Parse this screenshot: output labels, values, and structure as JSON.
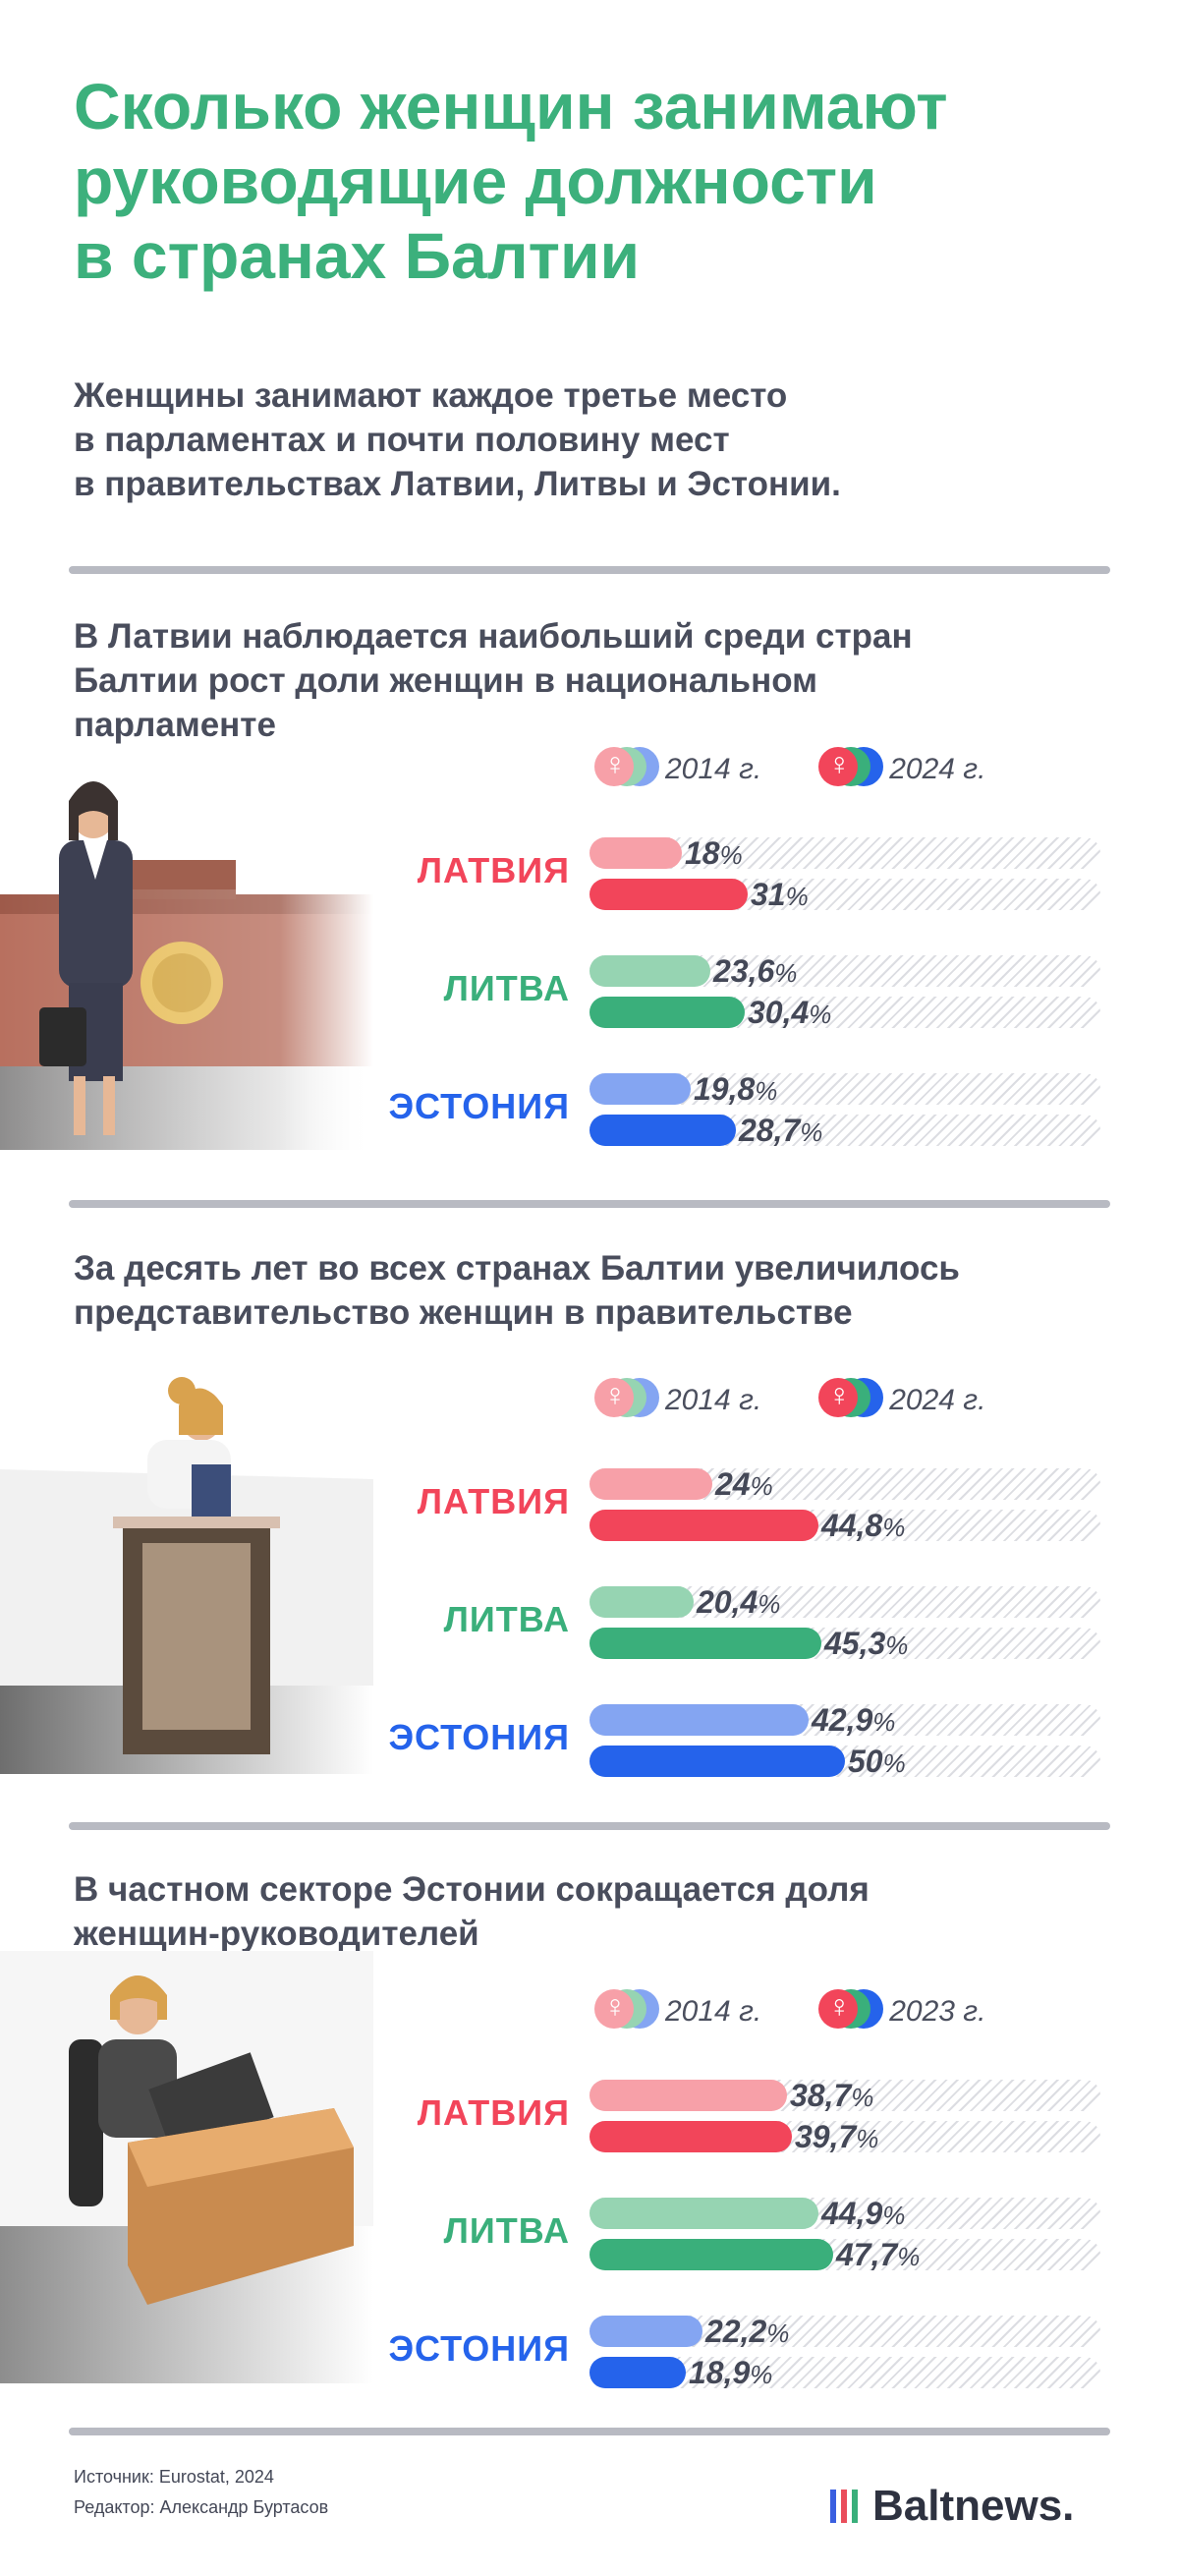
{
  "title": "Сколько женщин занимают\nруководящие должности\nв странах Балтии",
  "subtitle": "Женщины занимают каждое третье место\nв парламентах и почти половину мест\nв правительствах Латвии, Литвы и Эстонии.",
  "colors": {
    "title": "#3cb07c",
    "latvia": "#f2455a",
    "latvia_light": "#f7a0a8",
    "lithuania": "#3aaf7b",
    "lithuania_light": "#96d4b2",
    "estonia": "#2563eb",
    "estonia_light": "#84a5f2"
  },
  "chart_data": [
    {
      "type": "bar",
      "title": "В Латвии наблюдается наибольший среди стран\nБалтии рост доли женщин в национальном\nпарламенте",
      "legend": [
        "2014 г.",
        "2024 г."
      ],
      "categories": [
        "ЛАТВИЯ",
        "ЛИТВА",
        "ЭСТОНИЯ"
      ],
      "series": [
        {
          "name": "2014 г.",
          "values": [
            18,
            23.6,
            19.8
          ],
          "labels": [
            "18",
            "23,6",
            "19,8"
          ]
        },
        {
          "name": "2024 г.",
          "values": [
            31,
            30.4,
            28.7
          ],
          "labels": [
            "31",
            "30,4",
            "28,7"
          ]
        }
      ],
      "unit": "%",
      "ylim": [
        0,
        100
      ]
    },
    {
      "type": "bar",
      "title": "За десять лет во всех странах Балтии увеличилось\nпредставительство женщин в правительстве",
      "legend": [
        "2014 г.",
        "2024 г."
      ],
      "categories": [
        "ЛАТВИЯ",
        "ЛИТВА",
        "ЭСТОНИЯ"
      ],
      "series": [
        {
          "name": "2014 г.",
          "values": [
            24,
            20.4,
            42.9
          ],
          "labels": [
            "24",
            "20,4",
            "42,9"
          ]
        },
        {
          "name": "2024 г.",
          "values": [
            44.8,
            45.3,
            50
          ],
          "labels": [
            "44,8",
            "45,3",
            "50"
          ]
        }
      ],
      "unit": "%",
      "ylim": [
        0,
        100
      ]
    },
    {
      "type": "bar",
      "title": "В частном секторе Эстонии сокращается доля\nженщин-руководителей",
      "legend": [
        "2014 г.",
        "2023 г."
      ],
      "categories": [
        "ЛАТВИЯ",
        "ЛИТВА",
        "ЭСТОНИЯ"
      ],
      "series": [
        {
          "name": "2014 г.",
          "values": [
            38.7,
            44.9,
            22.2
          ],
          "labels": [
            "38,7",
            "44,9",
            "22,2"
          ]
        },
        {
          "name": "2023 г.",
          "values": [
            39.7,
            47.7,
            18.9
          ],
          "labels": [
            "39,7",
            "47,7",
            "18,9"
          ]
        }
      ],
      "unit": "%",
      "ylim": [
        0,
        100
      ]
    }
  ],
  "footer": {
    "source": "Источник: Eurostat, 2024",
    "editor": "Редактор: Александр Буртасов",
    "logo": "Baltnews."
  }
}
